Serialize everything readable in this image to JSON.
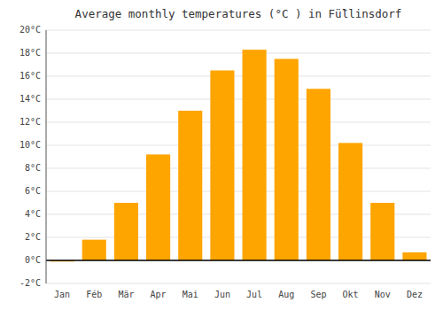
{
  "chart_data": {
    "type": "bar",
    "title": "Average monthly temperatures (°C ) in Fü̈llinsdorf",
    "categories": [
      "Jan",
      "Féb",
      "Mär",
      "Apr",
      "Mai",
      "Jun",
      "Jul",
      "Aug",
      "Sep",
      "Okt",
      "Nov",
      "Dez"
    ],
    "values": [
      -0.1,
      1.8,
      5.0,
      9.2,
      13.0,
      16.5,
      18.3,
      17.5,
      14.9,
      10.2,
      5.0,
      0.7
    ],
    "color": "#FFA500",
    "ylim": [
      -2,
      20
    ],
    "yticks": [
      {
        "value": -2,
        "label": "-2°C"
      },
      {
        "value": 0,
        "label": "0°C"
      },
      {
        "value": 2,
        "label": "2°C"
      },
      {
        "value": 4,
        "label": "4°C"
      },
      {
        "value": 6,
        "label": "6°C"
      },
      {
        "value": 8,
        "label": "8°C"
      },
      {
        "value": 10,
        "label": "10°C"
      },
      {
        "value": 12,
        "label": "12°C"
      },
      {
        "value": 14,
        "label": "14°C"
      },
      {
        "value": 16,
        "label": "16°C"
      },
      {
        "value": 18,
        "label": "18°C"
      },
      {
        "value": 20,
        "label": "20°C"
      }
    ],
    "grid": true
  }
}
